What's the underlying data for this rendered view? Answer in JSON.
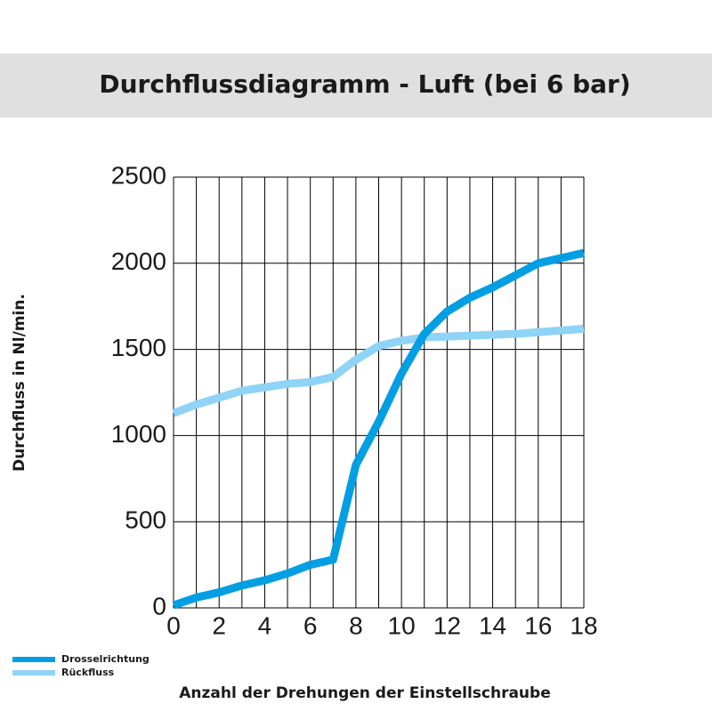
{
  "chart_data": {
    "type": "line",
    "title": "Durchflussdiagramm - Luft (bei 6 bar)",
    "x_label": "Anzahl der Drehungen der Einstellschraube",
    "y_label": "Durchfluss in Nl/min.",
    "x": [
      0,
      1,
      2,
      3,
      4,
      5,
      6,
      7,
      8,
      9,
      10,
      11,
      12,
      13,
      14,
      15,
      16,
      17,
      18
    ],
    "series": [
      {
        "name": "Drosselrichtung",
        "color": "#009fe3",
        "values": [
          15,
          60,
          90,
          130,
          160,
          200,
          250,
          280,
          830,
          1080,
          1360,
          1590,
          1720,
          1800,
          1860,
          1930,
          2000,
          2030,
          2060
        ]
      },
      {
        "name": "Rückfluss",
        "color": "#8fd3f6",
        "values": [
          1130,
          1180,
          1220,
          1260,
          1280,
          1300,
          1310,
          1340,
          1440,
          1520,
          1550,
          1570,
          1575,
          1580,
          1585,
          1590,
          1600,
          1610,
          1620
        ]
      }
    ],
    "xlim": [
      0,
      18
    ],
    "xticks": [
      0,
      2,
      4,
      6,
      8,
      10,
      12,
      14,
      16,
      18
    ],
    "ylim": [
      0,
      2500
    ],
    "yticks": [
      0,
      500,
      1000,
      1500,
      2000,
      2500
    ],
    "grid": true,
    "legend": "bottom-left"
  }
}
